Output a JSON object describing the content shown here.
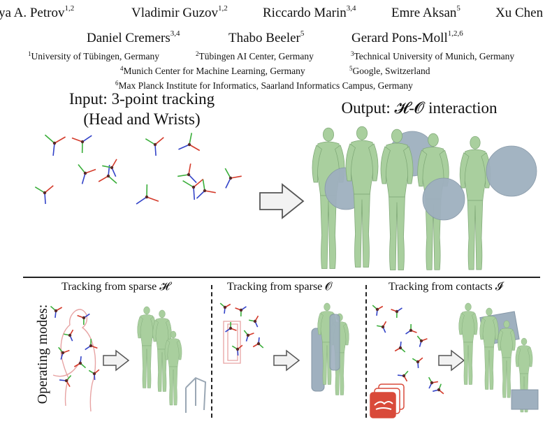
{
  "authors_row1": [
    {
      "name": "ya A. Petrov",
      "sup": "1,2"
    },
    {
      "name": "Vladimir Guzov",
      "sup": "1,2"
    },
    {
      "name": "Riccardo Marin",
      "sup": "3,4"
    },
    {
      "name": "Emre Aksan",
      "sup": "5"
    },
    {
      "name": "Xu Chen",
      "sup": ""
    }
  ],
  "authors_row2": [
    {
      "name": "Daniel Cremers",
      "sup": "3,4"
    },
    {
      "name": "Thabo Beeler",
      "sup": "5"
    },
    {
      "name": "Gerard Pons-Moll",
      "sup": "1,2,6"
    }
  ],
  "affiliations": [
    {
      "sup": "1",
      "text": "University of Tübingen, Germany"
    },
    {
      "sup": "2",
      "text": "Tübingen AI Center, Germany"
    },
    {
      "sup": "3",
      "text": "Technical University of Munich, Germany"
    },
    {
      "sup": "4",
      "text": "Munich Center for Machine Learning, Germany"
    },
    {
      "sup": "5",
      "text": "Google, Switzerland"
    },
    {
      "sup": "6",
      "text": "Max Planck Institute for Informatics, Saarland Informatics Campus, Germany"
    }
  ],
  "figure": {
    "input_title_line1": "Input: 3-point tracking",
    "input_title_line2": "(Head and Wrists)",
    "output_title": "Output: 𝓗-𝓞 interaction",
    "operating_modes_label": "Operating modes:",
    "modes": [
      {
        "title": "Tracking from sparse 𝓗"
      },
      {
        "title": "Tracking from sparse 𝓞"
      },
      {
        "title": "Tracking from contacts 𝓘"
      }
    ]
  },
  "colors": {
    "human_green": "#a9cf9e",
    "object_blue": "#9fb0bf",
    "axis_red": "#d43a2a",
    "axis_green": "#3aae3a",
    "axis_blue": "#3343c8",
    "hand_red": "#d94a3a"
  }
}
